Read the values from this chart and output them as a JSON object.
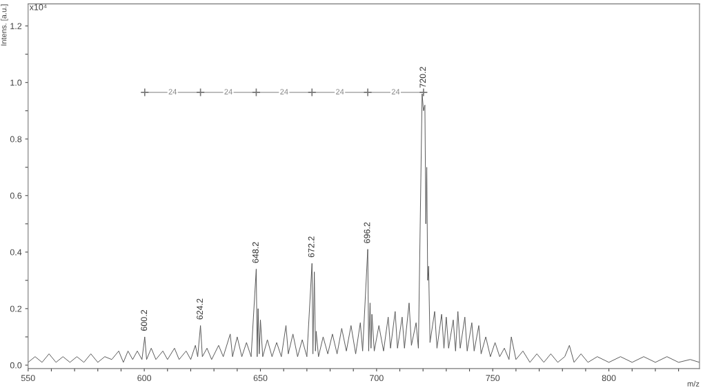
{
  "chart_data": {
    "type": "line",
    "xlabel": "m/z",
    "ylabel": "Intens. [a.u.]",
    "xlim": [
      550,
      839
    ],
    "ylim": [
      -0.012,
      1.278
    ],
    "xticks": [
      550,
      {
        "value": 560,
        "label": null
      },
      {
        "value": 570,
        "label": null
      },
      {
        "value": 580,
        "label": null
      },
      {
        "value": 590,
        "label": null
      },
      600,
      {
        "value": 610,
        "label": null
      },
      {
        "value": 620,
        "label": null
      },
      {
        "value": 630,
        "label": null
      },
      {
        "value": 640,
        "label": null
      },
      650,
      {
        "value": 660,
        "label": null
      },
      {
        "value": 670,
        "label": null
      },
      {
        "value": 680,
        "label": null
      },
      {
        "value": 690,
        "label": null
      },
      700,
      {
        "value": 710,
        "label": null
      },
      {
        "value": 720,
        "label": null
      },
      {
        "value": 730,
        "label": null
      },
      {
        "value": 740,
        "label": null
      },
      750,
      {
        "value": 760,
        "label": null
      },
      {
        "value": 770,
        "label": null
      },
      {
        "value": 780,
        "label": null
      },
      {
        "value": 790,
        "label": null
      },
      800,
      {
        "value": 810,
        "label": null
      },
      {
        "value": 820,
        "label": null
      },
      {
        "value": 830,
        "label": null
      }
    ],
    "yticks": [
      {
        "value": 0,
        "label": "0.0"
      },
      {
        "value": 0.1,
        "label": null
      },
      0.2,
      {
        "value": 0.3,
        "label": null
      },
      0.4,
      {
        "value": 0.5,
        "label": null
      },
      0.6,
      {
        "value": 0.7,
        "label": null
      },
      0.8,
      {
        "value": 0.9,
        "label": null
      },
      {
        "value": 1.0,
        "label": "1.0"
      },
      {
        "value": 1.1,
        "label": null
      },
      1.2
    ],
    "grid": false,
    "marker": "none",
    "line_style": "solid",
    "series": [
      {
        "color": "#555555",
        "x": [
          550,
          553,
          556,
          559,
          562,
          565,
          568,
          571,
          574,
          577,
          580,
          583,
          586,
          589,
          591,
          593,
          595,
          597,
          599,
          600.2,
          601,
          603,
          605,
          608,
          610,
          613,
          615,
          618,
          620,
          622,
          623,
          624.2,
          625,
          627,
          629,
          632,
          634,
          637,
          638,
          640,
          642,
          644,
          646,
          648.2,
          648.6,
          649,
          649.5,
          650,
          651,
          653,
          655,
          657,
          659,
          661,
          662,
          664,
          666,
          668,
          670,
          672.2,
          672.6,
          673.2,
          673.7,
          674,
          675,
          677,
          679,
          681,
          683,
          685,
          687,
          689,
          691,
          693,
          694,
          696.2,
          696.6,
          697.2,
          697.6,
          698,
          699,
          701,
          703,
          705,
          706,
          708,
          709,
          711,
          712,
          714,
          715,
          717,
          718,
          719.6,
          720.2,
          720.8,
          721.2,
          721.6,
          722.0,
          722.4,
          723,
          725,
          726,
          728,
          729,
          730,
          731,
          733,
          734,
          735,
          736,
          738,
          739,
          741,
          742,
          744,
          745,
          747,
          749,
          751,
          753,
          755,
          757,
          758,
          760,
          763,
          766,
          769,
          772,
          775,
          778,
          781,
          783,
          785,
          788,
          791,
          795,
          800,
          805,
          810,
          815,
          820,
          825,
          830,
          835,
          839
        ],
        "values": [
          0.01,
          0.03,
          0.01,
          0.04,
          0.01,
          0.03,
          0.01,
          0.03,
          0.01,
          0.04,
          0.01,
          0.03,
          0.02,
          0.05,
          0.01,
          0.05,
          0.02,
          0.05,
          0.02,
          0.1,
          0.02,
          0.06,
          0.02,
          0.05,
          0.02,
          0.06,
          0.02,
          0.05,
          0.02,
          0.07,
          0.03,
          0.14,
          0.03,
          0.06,
          0.02,
          0.07,
          0.03,
          0.11,
          0.03,
          0.1,
          0.03,
          0.08,
          0.03,
          0.34,
          0.03,
          0.2,
          0.04,
          0.16,
          0.03,
          0.09,
          0.03,
          0.08,
          0.03,
          0.14,
          0.04,
          0.11,
          0.03,
          0.09,
          0.03,
          0.36,
          0.04,
          0.33,
          0.05,
          0.12,
          0.03,
          0.1,
          0.04,
          0.11,
          0.04,
          0.13,
          0.05,
          0.14,
          0.04,
          0.15,
          0.05,
          0.41,
          0.05,
          0.22,
          0.06,
          0.18,
          0.05,
          0.14,
          0.05,
          0.17,
          0.06,
          0.19,
          0.06,
          0.17,
          0.06,
          0.22,
          0.07,
          0.15,
          0.06,
          0.96,
          0.9,
          0.92,
          0.5,
          0.7,
          0.3,
          0.35,
          0.08,
          0.19,
          0.06,
          0.18,
          0.06,
          0.17,
          0.06,
          0.16,
          0.05,
          0.19,
          0.06,
          0.17,
          0.05,
          0.15,
          0.05,
          0.14,
          0.04,
          0.1,
          0.03,
          0.08,
          0.03,
          0.06,
          0.02,
          0.1,
          0.02,
          0.05,
          0.01,
          0.04,
          0.01,
          0.04,
          0.01,
          0.03,
          0.07,
          0.01,
          0.04,
          0.01,
          0.03,
          0.01,
          0.03,
          0.01,
          0.03,
          0.01,
          0.03,
          0.01,
          0.02,
          0.01
        ]
      },
      {
        "color": "#777777",
        "x": [
          600.2,
          624.2,
          648.2,
          672.2,
          696.2,
          720.2
        ],
        "values": [
          0.965,
          0.965,
          0.965,
          0.965,
          0.965,
          0.965
        ],
        "marker": "cross"
      }
    ],
    "annotations": [
      "x10⁴",
      {
        "text": "600.2",
        "x": 600.2,
        "y": 0.1
      },
      {
        "text": "624.2",
        "x": 624.2,
        "y": 0.14
      },
      {
        "text": "648.2",
        "x": 648.2,
        "y": 0.34
      },
      {
        "text": "672.2",
        "x": 672.2,
        "y": 0.36
      },
      {
        "text": "696.2",
        "x": 696.2,
        "y": 0.41
      },
      {
        "text": "720.2",
        "x": 720.2,
        "y": 0.96
      },
      {
        "text": "24",
        "x": 612.2,
        "y": 0.965
      },
      {
        "text": "24",
        "x": 636.2,
        "y": 0.965
      },
      {
        "text": "24",
        "x": 660.2,
        "y": 0.965
      },
      {
        "text": "24",
        "x": 684.2,
        "y": 0.965
      },
      {
        "text": "24",
        "x": 708.2,
        "y": 0.965
      }
    ]
  }
}
